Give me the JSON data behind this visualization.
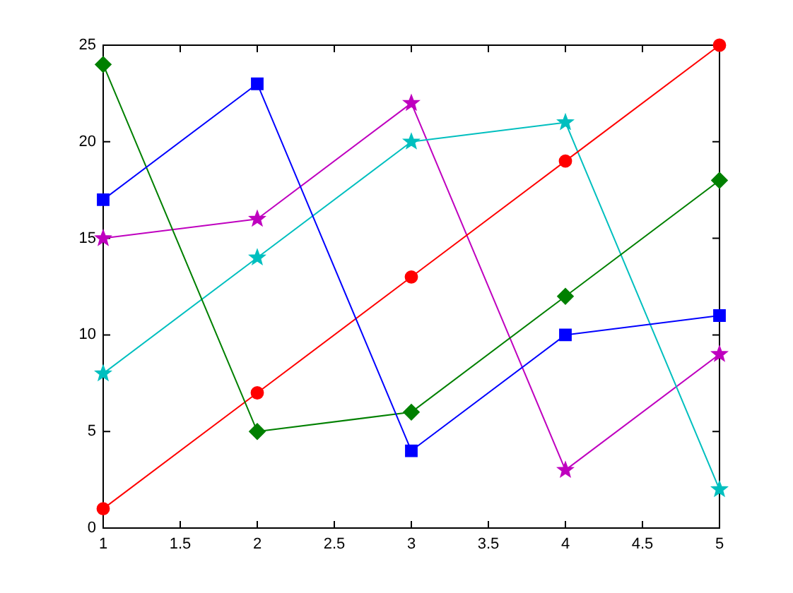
{
  "chart_data": {
    "type": "line",
    "x": [
      1,
      2,
      3,
      4,
      5
    ],
    "series": [
      {
        "color": "#0000ff",
        "marker": "square",
        "values": [
          17,
          23,
          4,
          10,
          11
        ]
      },
      {
        "color": "#008000",
        "marker": "diamond",
        "values": [
          24,
          5,
          6,
          12,
          18
        ]
      },
      {
        "color": "#ff0000",
        "marker": "circle",
        "values": [
          1,
          7,
          13,
          19,
          25
        ]
      },
      {
        "color": "#00bfbf",
        "marker": "star",
        "values": [
          8,
          14,
          20,
          21,
          2
        ]
      },
      {
        "color": "#bf00bf",
        "marker": "star",
        "values": [
          15,
          16,
          22,
          3,
          9
        ]
      }
    ],
    "xlim": [
      1,
      5
    ],
    "xticks": [
      1,
      1.5,
      2,
      2.5,
      3,
      3.5,
      4,
      4.5,
      5
    ],
    "ylim": [
      0,
      25
    ],
    "yticks": [
      0,
      5,
      10,
      15,
      20,
      25
    ],
    "grid": false,
    "legend": false,
    "line_style": "solid"
  }
}
